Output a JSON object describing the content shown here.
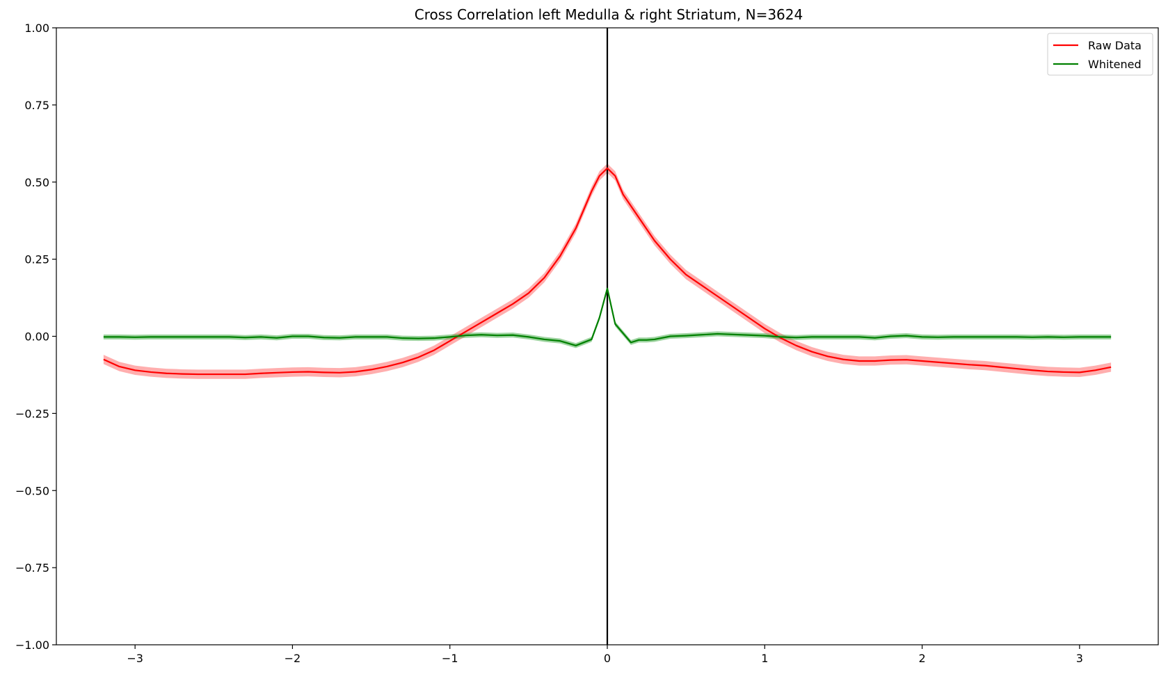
{
  "chart_data": {
    "type": "line",
    "title": "Cross Correlation left Medulla & right Striatum, N=3624",
    "xlabel": "",
    "ylabel": "",
    "xlim": [
      -3.5,
      3.5
    ],
    "ylim": [
      -1.0,
      1.0
    ],
    "x_ticks": [
      -3,
      -2,
      -1,
      0,
      1,
      2,
      3
    ],
    "x_tick_labels": [
      "−3",
      "−2",
      "−1",
      "0",
      "1",
      "2",
      "3"
    ],
    "y_ticks": [
      1.0,
      0.75,
      0.5,
      0.25,
      0.0,
      -0.25,
      -0.5,
      -0.75,
      -1.0
    ],
    "y_tick_labels": [
      "1.00",
      "0.75",
      "0.50",
      "0.25",
      "0.00",
      "−0.25",
      "−0.50",
      "−0.75",
      "−1.00"
    ],
    "vline_x": 0,
    "legend_position": "upper-right",
    "series": [
      {
        "name": "Raw Data",
        "color": "#ff0000",
        "band_color": "#ff6b6b",
        "band_halfwidth": 0.015,
        "x": [
          -3.2,
          -3.1,
          -3.0,
          -2.9,
          -2.8,
          -2.7,
          -2.6,
          -2.5,
          -2.4,
          -2.3,
          -2.2,
          -2.1,
          -2.0,
          -1.9,
          -1.8,
          -1.7,
          -1.6,
          -1.5,
          -1.4,
          -1.3,
          -1.2,
          -1.1,
          -1.0,
          -0.9,
          -0.8,
          -0.7,
          -0.6,
          -0.5,
          -0.4,
          -0.3,
          -0.2,
          -0.1,
          -0.05,
          0.0,
          0.05,
          0.1,
          0.2,
          0.3,
          0.4,
          0.5,
          0.6,
          0.7,
          0.8,
          0.9,
          1.0,
          1.1,
          1.2,
          1.3,
          1.4,
          1.5,
          1.6,
          1.7,
          1.8,
          1.9,
          2.0,
          2.1,
          2.2,
          2.3,
          2.4,
          2.5,
          2.6,
          2.7,
          2.8,
          2.9,
          3.0,
          3.1,
          3.2
        ],
        "y": [
          -0.075,
          -0.098,
          -0.11,
          -0.116,
          -0.12,
          -0.122,
          -0.123,
          -0.123,
          -0.123,
          -0.123,
          -0.12,
          -0.118,
          -0.116,
          -0.115,
          -0.117,
          -0.118,
          -0.115,
          -0.108,
          -0.098,
          -0.085,
          -0.068,
          -0.045,
          -0.015,
          0.015,
          0.045,
          0.075,
          0.105,
          0.14,
          0.19,
          0.26,
          0.35,
          0.47,
          0.52,
          0.545,
          0.52,
          0.46,
          0.385,
          0.31,
          0.25,
          0.2,
          0.165,
          0.13,
          0.095,
          0.06,
          0.025,
          -0.005,
          -0.03,
          -0.05,
          -0.065,
          -0.075,
          -0.08,
          -0.08,
          -0.077,
          -0.076,
          -0.08,
          -0.084,
          -0.088,
          -0.092,
          -0.095,
          -0.1,
          -0.105,
          -0.11,
          -0.114,
          -0.116,
          -0.117,
          -0.11,
          -0.1
        ]
      },
      {
        "name": "Whitened",
        "color": "#008000",
        "band_color": "#4caf50",
        "band_halfwidth": 0.008,
        "x": [
          -3.2,
          -3.1,
          -3.0,
          -2.9,
          -2.8,
          -2.7,
          -2.6,
          -2.5,
          -2.4,
          -2.3,
          -2.2,
          -2.1,
          -2.0,
          -1.9,
          -1.8,
          -1.7,
          -1.6,
          -1.5,
          -1.4,
          -1.3,
          -1.2,
          -1.1,
          -1.0,
          -0.9,
          -0.8,
          -0.7,
          -0.6,
          -0.5,
          -0.4,
          -0.3,
          -0.2,
          -0.1,
          -0.05,
          0.0,
          0.05,
          0.1,
          0.15,
          0.2,
          0.25,
          0.3,
          0.4,
          0.5,
          0.6,
          0.7,
          0.8,
          0.9,
          1.0,
          1.1,
          1.2,
          1.3,
          1.4,
          1.5,
          1.6,
          1.7,
          1.8,
          1.9,
          2.0,
          2.1,
          2.2,
          2.3,
          2.4,
          2.5,
          2.6,
          2.7,
          2.8,
          2.9,
          3.0,
          3.1,
          3.2
        ],
        "y": [
          -0.002,
          -0.002,
          -0.003,
          -0.002,
          -0.002,
          -0.002,
          -0.002,
          -0.002,
          -0.002,
          -0.004,
          -0.002,
          -0.005,
          0.0,
          0.0,
          -0.004,
          -0.005,
          -0.002,
          -0.002,
          -0.002,
          -0.006,
          -0.007,
          -0.006,
          -0.002,
          0.003,
          0.005,
          0.003,
          0.004,
          -0.002,
          -0.01,
          -0.015,
          -0.03,
          -0.01,
          0.06,
          0.155,
          0.04,
          0.01,
          -0.02,
          -0.012,
          -0.012,
          -0.01,
          0.0,
          0.002,
          0.005,
          0.008,
          0.006,
          0.004,
          0.002,
          -0.002,
          -0.004,
          -0.002,
          -0.002,
          -0.002,
          -0.002,
          -0.005,
          0.0,
          0.002,
          -0.002,
          -0.003,
          -0.002,
          -0.002,
          -0.002,
          -0.002,
          -0.002,
          -0.003,
          -0.002,
          -0.003,
          -0.002,
          -0.002,
          -0.002
        ]
      }
    ]
  }
}
